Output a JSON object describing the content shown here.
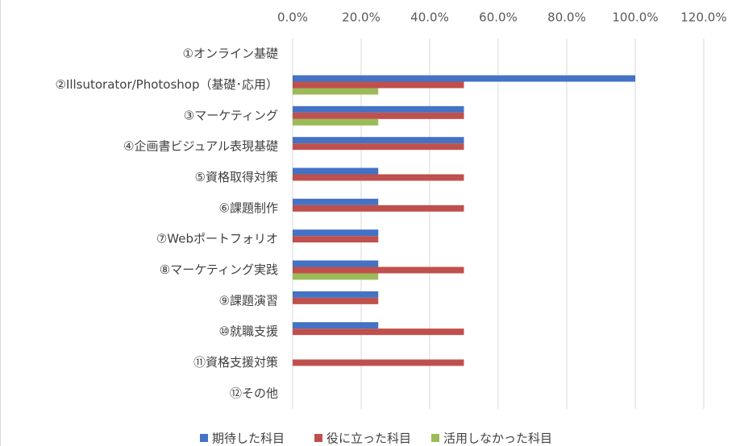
{
  "chart_data": {
    "type": "bar",
    "orientation": "horizontal",
    "categories": [
      "①オンライン基礎",
      "②Illsutorator/Photoshop（基礎･応用）",
      "③マーケティング",
      "④企画書ビジュアル表現基礎",
      "⑤資格取得対策",
      "⑥課題制作",
      "⑦Webポートフォリオ",
      "⑧マーケティング実践",
      "⑨課題演習",
      "⑩就職支援",
      "⑪資格支援対策",
      "⑫その他"
    ],
    "series": [
      {
        "name": "期待した科目",
        "color": "#4472c4",
        "values": [
          0,
          100,
          50,
          50,
          25,
          25,
          25,
          25,
          25,
          25,
          0,
          0
        ]
      },
      {
        "name": "役に立った科目",
        "color": "#c0504d",
        "values": [
          0,
          50,
          50,
          50,
          50,
          50,
          25,
          50,
          25,
          50,
          50,
          0
        ]
      },
      {
        "name": "活用しなかった科目",
        "color": "#9bbb59",
        "values": [
          0,
          25,
          25,
          0,
          0,
          0,
          0,
          25,
          0,
          0,
          0,
          0
        ]
      }
    ],
    "xlim": [
      0,
      120
    ],
    "xticks": [
      {
        "value": 0,
        "label": "0.0%"
      },
      {
        "value": 20,
        "label": "20.0%"
      },
      {
        "value": 40,
        "label": "40.0%"
      },
      {
        "value": 60,
        "label": "60.0%"
      },
      {
        "value": 80,
        "label": "80.0%"
      },
      {
        "value": 100,
        "label": "100.0%"
      },
      {
        "value": 120,
        "label": "120.0%"
      }
    ],
    "grid": true,
    "legend": "bottom"
  }
}
